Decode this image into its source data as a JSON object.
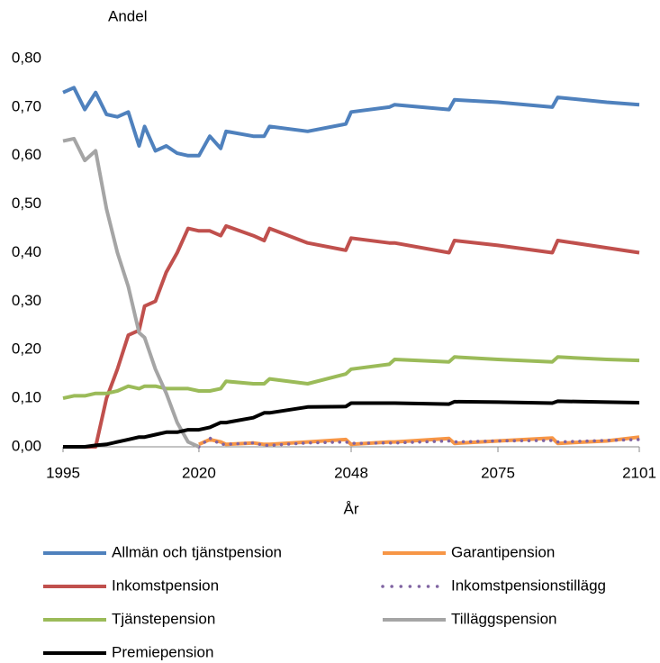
{
  "chart_data": {
    "type": "line",
    "ylabel": "Andel",
    "xlabel": "År",
    "x": [
      1995,
      1997,
      1999,
      2001,
      2003,
      2005,
      2007,
      2009,
      2010,
      2012,
      2014,
      2016,
      2018,
      2020,
      2022,
      2024,
      2025,
      2030,
      2032,
      2033,
      2040,
      2047,
      2048,
      2055,
      2056,
      2066,
      2067,
      2075,
      2085,
      2086,
      2095,
      2101
    ],
    "xlim": [
      1995,
      2101
    ],
    "xticks": [
      1995,
      2020,
      2048,
      2075,
      2101
    ],
    "ylim": [
      0,
      0.8
    ],
    "yticks": [
      {
        "value": 0,
        "label": "0,00"
      },
      {
        "value": 0.1,
        "label": "0,10"
      },
      {
        "value": 0.2,
        "label": "0,20"
      },
      {
        "value": 0.3,
        "label": "0,30"
      },
      {
        "value": 0.4,
        "label": "0,40"
      },
      {
        "value": 0.5,
        "label": "0,50"
      },
      {
        "value": 0.6,
        "label": "0,60"
      },
      {
        "value": 0.7,
        "label": "0,70"
      },
      {
        "value": 0.8,
        "label": "0,80"
      }
    ],
    "series": [
      {
        "name": "Allmän och tjänstpension",
        "color": "#4f81bd",
        "values": [
          0.73,
          0.74,
          0.695,
          0.73,
          0.685,
          0.68,
          0.69,
          0.62,
          0.66,
          0.61,
          0.62,
          0.605,
          0.6,
          0.6,
          0.64,
          0.615,
          0.65,
          0.64,
          0.64,
          0.66,
          0.65,
          0.665,
          0.69,
          0.7,
          0.705,
          0.695,
          0.715,
          0.71,
          0.7,
          0.72,
          0.71,
          0.705
        ]
      },
      {
        "name": "Garantipension",
        "color": "#f79646",
        "values": [
          null,
          null,
          null,
          null,
          null,
          null,
          null,
          null,
          null,
          null,
          null,
          null,
          null,
          0.005,
          0.015,
          0.01,
          0.005,
          0.008,
          0.005,
          0.005,
          0.01,
          0.015,
          0.005,
          0.01,
          0.01,
          0.017,
          0.007,
          0.012,
          0.018,
          0.007,
          0.012,
          0.02
        ]
      },
      {
        "name": "Inkomstpension",
        "color": "#c0504d",
        "values": [
          0,
          0,
          0,
          0,
          0.1,
          0.16,
          0.23,
          0.24,
          0.29,
          0.3,
          0.36,
          0.4,
          0.45,
          0.445,
          0.445,
          0.435,
          0.455,
          0.435,
          0.425,
          0.45,
          0.42,
          0.405,
          0.43,
          0.42,
          0.42,
          0.4,
          0.425,
          0.415,
          0.4,
          0.425,
          0.41,
          0.4
        ]
      },
      {
        "name": "Inkomstpensionstillägg",
        "color": "#8064a2",
        "linestyle": "dotted",
        "values": [
          null,
          null,
          null,
          null,
          null,
          null,
          null,
          null,
          null,
          null,
          null,
          null,
          null,
          0,
          0.018,
          0.005,
          0.005,
          0.008,
          0.003,
          0.003,
          0.008,
          0.01,
          0.007,
          0.008,
          0.008,
          0.012,
          0.01,
          0.012,
          0.013,
          0.01,
          0.013,
          0.015
        ]
      },
      {
        "name": "Tjänstepension",
        "color": "#9bbb59",
        "values": [
          0.1,
          0.105,
          0.105,
          0.11,
          0.11,
          0.115,
          0.125,
          0.12,
          0.125,
          0.125,
          0.12,
          0.12,
          0.12,
          0.115,
          0.115,
          0.12,
          0.135,
          0.13,
          0.13,
          0.14,
          0.13,
          0.15,
          0.16,
          0.17,
          0.18,
          0.175,
          0.185,
          0.18,
          0.175,
          0.185,
          0.18,
          0.178
        ]
      },
      {
        "name": "Tilläggspension",
        "color": "#a5a5a5",
        "values": [
          0.63,
          0.635,
          0.59,
          0.61,
          0.49,
          0.4,
          0.33,
          0.235,
          0.225,
          0.16,
          0.11,
          0.05,
          0.01,
          0,
          null,
          null,
          null,
          null,
          null,
          null,
          null,
          null,
          null,
          null,
          null,
          null,
          null,
          null,
          null,
          null,
          null,
          null
        ]
      },
      {
        "name": "Premiepension",
        "color": "#000000",
        "values": [
          0,
          0,
          0,
          0.003,
          0.005,
          0.01,
          0.015,
          0.02,
          0.02,
          0.025,
          0.03,
          0.03,
          0.035,
          0.035,
          0.04,
          0.05,
          0.05,
          0.06,
          0.07,
          0.07,
          0.082,
          0.083,
          0.09,
          0.09,
          0.09,
          0.088,
          0.093,
          0.092,
          0.09,
          0.094,
          0.092,
          0.091
        ]
      }
    ]
  }
}
